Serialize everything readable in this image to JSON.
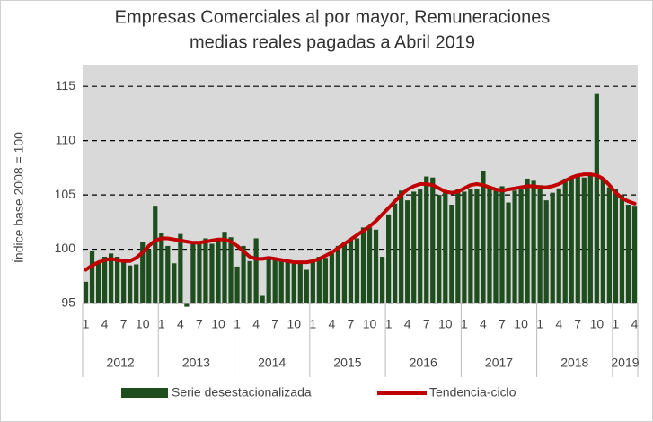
{
  "chart_data": {
    "type": "bar",
    "title": [
      "Empresas Comerciales  al por mayor, Remuneraciones",
      "medias reales pagadas a Abril 2019"
    ],
    "y_label": "Índice base 2008 = 100",
    "categories": [
      "1",
      null,
      null,
      "4",
      null,
      null,
      "7",
      null,
      null,
      "10",
      null,
      null,
      "1",
      null,
      null,
      "4",
      null,
      null,
      "7",
      null,
      null,
      "10",
      null,
      null,
      "1",
      null,
      null,
      "4",
      null,
      null,
      "7",
      null,
      null,
      "10",
      null,
      null,
      "1",
      null,
      null,
      "4",
      null,
      null,
      "7",
      null,
      null,
      "10",
      null,
      null,
      "1",
      null,
      null,
      "4",
      null,
      null,
      "7",
      null,
      null,
      "10",
      null,
      null,
      "1",
      null,
      null,
      "4",
      null,
      null,
      "7",
      null,
      null,
      "10",
      null,
      null,
      "1",
      null,
      null,
      "4",
      null,
      null,
      "7",
      null,
      null,
      "10",
      null,
      null,
      "1",
      null,
      null,
      "4"
    ],
    "years": [
      "2012",
      "2013",
      "2014",
      "2015",
      "2016",
      "2017",
      "2018",
      "2019"
    ],
    "series": [
      {
        "name": "Serie desestacionalizada",
        "color": "#1e4d1e",
        "values": [
          97.0,
          99.8,
          98.8,
          99.3,
          99.6,
          99.3,
          99.0,
          98.5,
          98.6,
          100.7,
          100.0,
          104.0,
          101.5,
          100.3,
          98.7,
          101.4,
          94.7,
          100.6,
          100.6,
          101.0,
          100.5,
          101.0,
          101.6,
          101.1,
          98.4,
          100.3,
          98.9,
          101.0,
          95.7,
          99.2,
          99.0,
          99.0,
          98.8,
          98.7,
          98.8,
          98.1,
          98.8,
          99.3,
          99.2,
          99.6,
          100.3,
          100.7,
          101.0,
          101.0,
          102.0,
          102.0,
          101.8,
          99.3,
          103.2,
          104.2,
          105.4,
          104.5,
          105.3,
          105.5,
          106.7,
          106.6,
          105.0,
          105.3,
          104.1,
          105.5,
          105.3,
          105.5,
          105.5,
          107.2,
          105.7,
          105.4,
          105.8,
          104.3,
          105.4,
          105.5,
          106.5,
          106.3,
          105.9,
          104.5,
          105.2,
          105.6,
          106.5,
          106.6,
          106.7,
          106.6,
          106.8,
          114.3,
          106.6,
          105.7,
          105.5,
          105.0,
          104.1,
          104.0
        ]
      },
      {
        "name": "Tendencia-ciclo",
        "type": "line",
        "color": "#c00000",
        "values": [
          98.1,
          98.5,
          98.8,
          99.0,
          99.1,
          99.0,
          98.9,
          98.9,
          99.2,
          99.7,
          100.3,
          100.8,
          101.0,
          101.0,
          100.9,
          100.8,
          100.7,
          100.6,
          100.6,
          100.7,
          100.8,
          100.9,
          100.9,
          100.7,
          100.3,
          99.8,
          99.3,
          99.1,
          99.1,
          99.2,
          99.1,
          99.0,
          98.9,
          98.8,
          98.8,
          98.8,
          98.9,
          99.1,
          99.4,
          99.7,
          100.1,
          100.5,
          100.9,
          101.3,
          101.7,
          102.1,
          102.6,
          103.2,
          103.8,
          104.4,
          105.0,
          105.5,
          105.8,
          106.0,
          106.0,
          105.9,
          105.6,
          105.3,
          105.2,
          105.3,
          105.6,
          105.9,
          106.0,
          105.9,
          105.7,
          105.5,
          105.4,
          105.5,
          105.6,
          105.7,
          105.8,
          105.8,
          105.7,
          105.7,
          105.8,
          106.0,
          106.3,
          106.6,
          106.8,
          106.9,
          106.9,
          106.8,
          106.5,
          105.9,
          105.2,
          104.7,
          104.4,
          104.2
        ]
      }
    ],
    "ylim": [
      95,
      117
    ],
    "yticks": [
      95,
      100,
      105,
      110,
      115
    ],
    "grid": true
  }
}
